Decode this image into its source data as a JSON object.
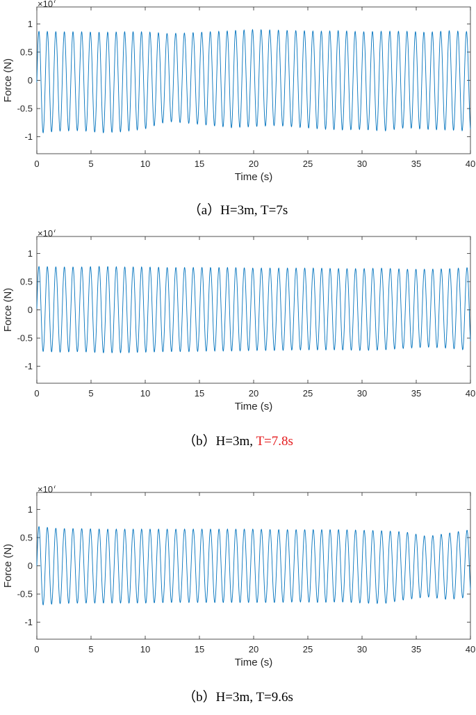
{
  "chart_data": [
    {
      "type": "line",
      "xlabel": "Time (s)",
      "ylabel": "Force (N)",
      "exponent_base": "×10",
      "exponent_power": "7",
      "xlim": [
        0,
        40
      ],
      "ylim": [
        -1.3,
        1.3
      ],
      "xticks": [
        "0",
        "5",
        "10",
        "15",
        "20",
        "25",
        "30",
        "35",
        "40"
      ],
      "yticks": [
        "-1",
        "-0.5",
        "0",
        "0.5",
        "1"
      ],
      "caption_main": "（a）H=3m, T=7s",
      "caption_highlight": "",
      "line_color": "#0072BD",
      "series": [
        {
          "x": [
            0,
            2,
            4,
            6,
            8,
            10,
            12,
            14,
            16,
            18,
            20,
            22,
            24,
            26,
            28,
            30,
            32,
            34,
            36,
            38,
            40
          ],
          "upper": [
            0.87,
            0.86,
            0.86,
            0.85,
            0.86,
            0.86,
            0.83,
            0.84,
            0.86,
            0.88,
            0.9,
            0.89,
            0.88,
            0.87,
            0.88,
            0.86,
            0.87,
            0.87,
            0.85,
            0.88,
            0.86
          ],
          "lower": [
            -0.94,
            -0.9,
            -0.89,
            -0.93,
            -0.91,
            -0.86,
            -0.73,
            -0.76,
            -0.8,
            -0.84,
            -0.82,
            -0.8,
            -0.83,
            -0.86,
            -0.88,
            -0.87,
            -0.9,
            -0.84,
            -0.87,
            -0.88,
            -0.9
          ]
        }
      ]
    },
    {
      "type": "line",
      "xlabel": "Time (s)",
      "ylabel": "Force (N)",
      "exponent_base": "×10",
      "exponent_power": "7",
      "xlim": [
        0,
        40
      ],
      "ylim": [
        -1.3,
        1.3
      ],
      "xticks": [
        "0",
        "5",
        "10",
        "15",
        "20",
        "25",
        "30",
        "35",
        "40"
      ],
      "yticks": [
        "-1",
        "-0.5",
        "0",
        "0.5",
        "1"
      ],
      "caption_main": "（b）H=3m, ",
      "caption_highlight": "T=7.8s",
      "line_color": "#0072BD",
      "series": [
        {
          "x": [
            0,
            2,
            4,
            6,
            8,
            10,
            12,
            14,
            16,
            18,
            20,
            22,
            24,
            26,
            28,
            30,
            32,
            34,
            36,
            38,
            40
          ],
          "upper": [
            0.77,
            0.76,
            0.76,
            0.77,
            0.76,
            0.76,
            0.75,
            0.75,
            0.75,
            0.75,
            0.74,
            0.74,
            0.74,
            0.74,
            0.73,
            0.73,
            0.74,
            0.72,
            0.72,
            0.73,
            0.75
          ],
          "lower": [
            -0.73,
            -0.75,
            -0.74,
            -0.76,
            -0.76,
            -0.75,
            -0.74,
            -0.74,
            -0.73,
            -0.73,
            -0.72,
            -0.72,
            -0.71,
            -0.71,
            -0.71,
            -0.72,
            -0.71,
            -0.68,
            -0.66,
            -0.68,
            -0.72
          ]
        }
      ]
    },
    {
      "type": "line",
      "xlabel": "Time (s)",
      "ylabel": "Force (N)",
      "exponent_base": "×10",
      "exponent_power": "7",
      "xlim": [
        0,
        40
      ],
      "ylim": [
        -1.3,
        1.3
      ],
      "xticks": [
        "0",
        "5",
        "10",
        "15",
        "20",
        "25",
        "30",
        "35",
        "40"
      ],
      "yticks": [
        "-1",
        "-0.5",
        "0",
        "0.5",
        "1"
      ],
      "caption_main": "（b）H=3m, T=9.6s",
      "caption_highlight": "",
      "line_color": "#0072BD",
      "series": [
        {
          "x": [
            0,
            2,
            4,
            6,
            8,
            10,
            12,
            14,
            16,
            18,
            20,
            22,
            24,
            26,
            28,
            30,
            32,
            34,
            36,
            38,
            40
          ],
          "upper": [
            0.7,
            0.66,
            0.66,
            0.65,
            0.65,
            0.65,
            0.65,
            0.65,
            0.65,
            0.65,
            0.65,
            0.64,
            0.64,
            0.64,
            0.64,
            0.63,
            0.62,
            0.6,
            0.52,
            0.58,
            0.64
          ],
          "lower": [
            -0.7,
            -0.67,
            -0.66,
            -0.66,
            -0.66,
            -0.66,
            -0.65,
            -0.65,
            -0.65,
            -0.65,
            -0.65,
            -0.65,
            -0.64,
            -0.65,
            -0.64,
            -0.66,
            -0.67,
            -0.6,
            -0.55,
            -0.6,
            -0.55
          ]
        }
      ]
    }
  ]
}
